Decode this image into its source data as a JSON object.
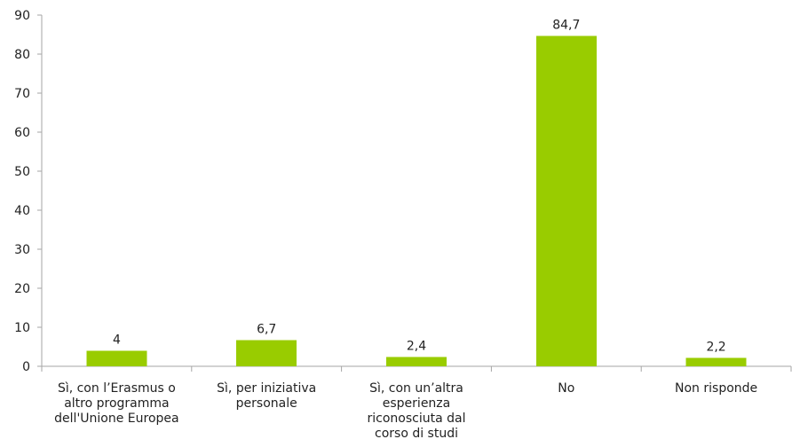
{
  "chart_data": {
    "type": "bar",
    "categories": [
      [
        "Sì, con l’Erasmus o",
        "altro programma",
        "dell'Unione Europea"
      ],
      [
        "Sì, per iniziativa",
        "personale"
      ],
      [
        "Sì, con un’altra",
        "esperienza",
        "riconosciuta dal",
        "corso di studi"
      ],
      [
        "No"
      ],
      [
        "Non risponde"
      ]
    ],
    "values": [
      4,
      6.7,
      2.4,
      84.7,
      2.2
    ],
    "value_labels": [
      "4",
      "6,7",
      "2,4",
      "84,7",
      "2,2"
    ],
    "yticks": [
      "0",
      "10",
      "20",
      "30",
      "40",
      "50",
      "60",
      "70",
      "80",
      "90"
    ],
    "ylim": [
      0,
      90
    ],
    "grid": false,
    "legend": "none",
    "bar_color": "#99cc00",
    "axis_color": "#a6a6a6"
  }
}
